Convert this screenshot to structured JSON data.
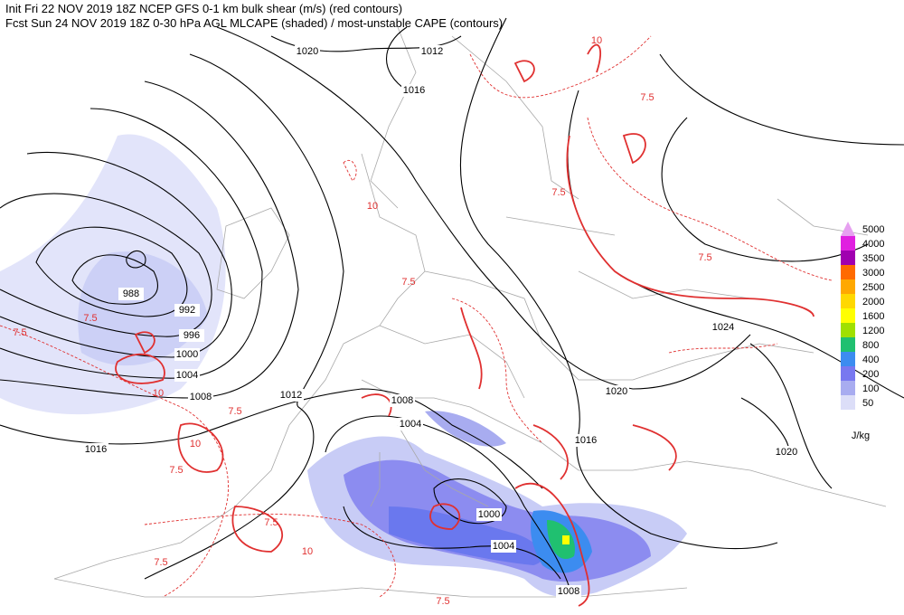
{
  "header": {
    "line1": "Init  Fri 22 NOV 2019 18Z  NCEP GFS 0-1 km bulk shear (m/s) (red contours)",
    "line2": "Fcst Sun 24 NOV 2019 18Z  0-30 hPa AGL MLCAPE (shaded) / most-unstable CAPE (contours)"
  },
  "colorbar": {
    "unit": "J/kg",
    "levels": [
      {
        "value": 5000,
        "color": "#e6a0f0"
      },
      {
        "value": 4000,
        "color": "#e020e0"
      },
      {
        "value": 3500,
        "color": "#a000b0"
      },
      {
        "value": 3000,
        "color": "#ff6a00"
      },
      {
        "value": 2500,
        "color": "#ffa800"
      },
      {
        "value": 2000,
        "color": "#ffd800"
      },
      {
        "value": 1600,
        "color": "#ffff00"
      },
      {
        "value": 1200,
        "color": "#a0e000"
      },
      {
        "value": 800,
        "color": "#20c070"
      },
      {
        "value": 400,
        "color": "#3c8cf0"
      },
      {
        "value": 200,
        "color": "#7878f0"
      },
      {
        "value": 100,
        "color": "#a8acf0"
      },
      {
        "value": 50,
        "color": "#dcdef8"
      }
    ]
  },
  "isobar_labels": [
    "1020",
    "1012",
    "1016",
    "988",
    "992",
    "996",
    "1000",
    "1004",
    "1008",
    "1012",
    "1016",
    "1008",
    "1004",
    "1024",
    "1020",
    "1016",
    "1020",
    "1000",
    "1004",
    "1008"
  ],
  "shear_labels": [
    "7.5",
    "7.5",
    "10",
    "7.5",
    "10",
    "7.5",
    "7.5",
    "10",
    "7.5",
    "7.5",
    "10",
    "7.5",
    "7.5",
    "10",
    "7.5",
    "7.5"
  ]
}
